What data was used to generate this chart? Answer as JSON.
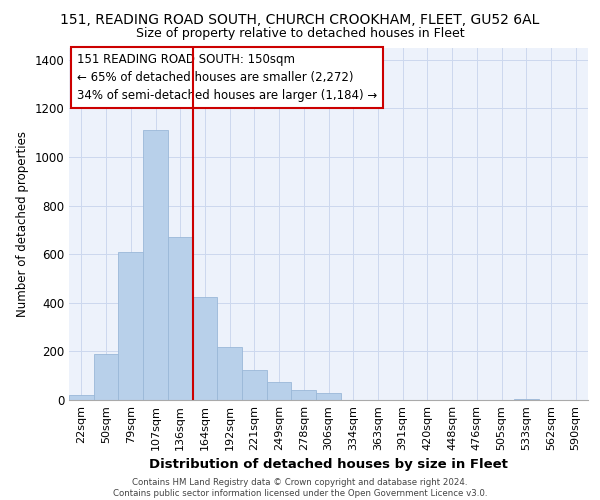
{
  "title_line1": "151, READING ROAD SOUTH, CHURCH CROOKHAM, FLEET, GU52 6AL",
  "title_line2": "Size of property relative to detached houses in Fleet",
  "xlabel": "Distribution of detached houses by size in Fleet",
  "ylabel": "Number of detached properties",
  "categories": [
    "22sqm",
    "50sqm",
    "79sqm",
    "107sqm",
    "136sqm",
    "164sqm",
    "192sqm",
    "221sqm",
    "249sqm",
    "278sqm",
    "306sqm",
    "334sqm",
    "363sqm",
    "391sqm",
    "420sqm",
    "448sqm",
    "476sqm",
    "505sqm",
    "533sqm",
    "562sqm",
    "590sqm"
  ],
  "values": [
    20,
    190,
    610,
    1110,
    670,
    425,
    220,
    125,
    75,
    40,
    27,
    0,
    0,
    0,
    0,
    0,
    0,
    0,
    5,
    0,
    0
  ],
  "bar_color": "#b8d0ea",
  "bar_edge_color": "#9ab8d8",
  "grid_color": "#ccd8ee",
  "background_color": "#edf2fb",
  "vline_color": "#cc0000",
  "annotation_text": "151 READING ROAD SOUTH: 150sqm\n← 65% of detached houses are smaller (2,272)\n34% of semi-detached houses are larger (1,184) →",
  "annotation_box_color": "#ffffff",
  "annotation_box_edge": "#cc0000",
  "ylim": [
    0,
    1450
  ],
  "yticks": [
    0,
    200,
    400,
    600,
    800,
    1000,
    1200,
    1400
  ],
  "footer_line1": "Contains HM Land Registry data © Crown copyright and database right 2024.",
  "footer_line2": "Contains public sector information licensed under the Open Government Licence v3.0."
}
